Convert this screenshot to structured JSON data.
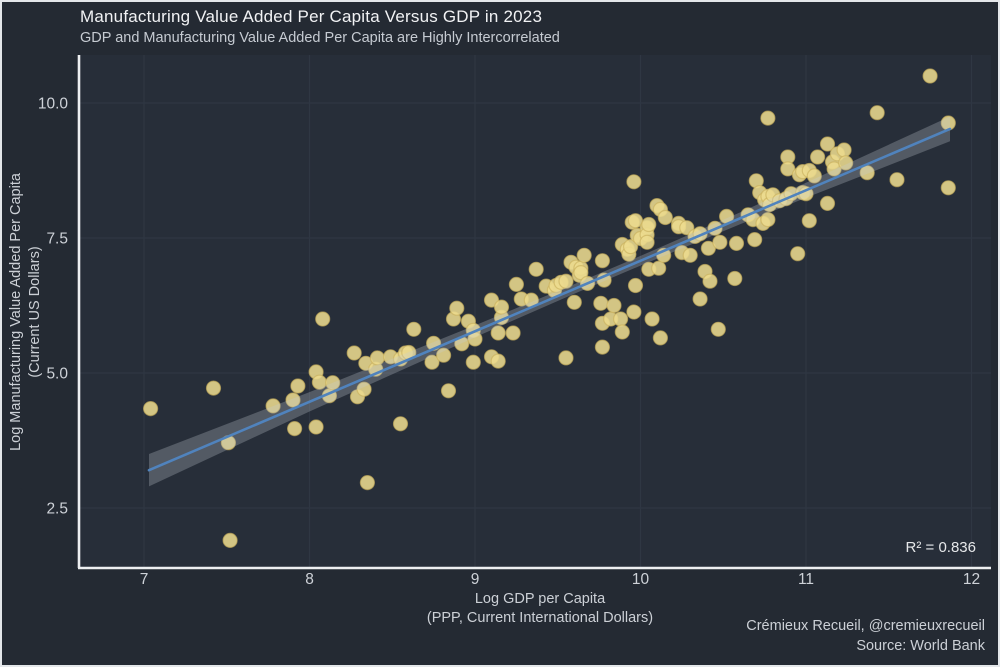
{
  "header": {
    "title": "Manufacturing Value Added Per Capita Versus GDP in 2023",
    "subtitle": "GDP and Manufacturing Value Added Per Capita are Highly Intercorrelated"
  },
  "footer": {
    "attribution": "Crémieux Recueil, @cremieuxrecueil",
    "source": "Source: World Bank"
  },
  "colors": {
    "background": "#242a33",
    "panel": "#272e39",
    "gridline": "#2f3743",
    "spine": "#edeff1",
    "point_fill": "#ecdb8e",
    "point_edge": "#c9b05e",
    "regression_line": "#5083bd",
    "confidence_band": "rgba(197,203,213,0.28)",
    "text": "#ced2d8",
    "title_text": "#f1f2f4"
  },
  "chart_data": {
    "type": "scatter",
    "title": "Manufacturing Value Added Per Capita Versus GDP in 2023",
    "subtitle": "GDP and Manufacturing Value Added Per Capita are Highly Intercorrelated",
    "xlabel_line1": "Log GDP per Capita",
    "xlabel_line2": "(PPP, Current International Dollars)",
    "ylabel_line1": "Log Manufacturing Value Added Per Capita",
    "ylabel_line2": "(Current US Dollars)",
    "annotation": "R² = 0.836",
    "xlim": [
      6.61,
      12.1
    ],
    "ylim": [
      1.42,
      10.9
    ],
    "xticks": [
      7,
      8,
      9,
      10,
      11,
      12
    ],
    "xtick_labels": [
      "7",
      "8",
      "9",
      "10",
      "11",
      "12"
    ],
    "yticks": [
      2.5,
      5.0,
      7.5,
      10.0
    ],
    "ytick_labels": [
      "2.5",
      "5.0",
      "7.5",
      "10.0"
    ],
    "grid": "major-on",
    "legend": "none",
    "regression": {
      "x1": 7.03,
      "y1": 3.2,
      "x2": 11.87,
      "y2": 9.52
    },
    "band_halfwidth": [
      [
        7.03,
        0.3
      ],
      [
        8.0,
        0.18
      ],
      [
        9.0,
        0.11
      ],
      [
        9.6,
        0.09
      ],
      [
        10.0,
        0.09
      ],
      [
        10.6,
        0.11
      ],
      [
        11.0,
        0.14
      ],
      [
        11.87,
        0.23
      ]
    ],
    "points": [
      [
        7.04,
        4.34
      ],
      [
        7.42,
        4.72
      ],
      [
        7.51,
        3.71
      ],
      [
        7.52,
        1.9
      ],
      [
        7.78,
        4.39
      ],
      [
        7.9,
        4.5
      ],
      [
        7.91,
        3.97
      ],
      [
        7.93,
        4.76
      ],
      [
        8.04,
        5.02
      ],
      [
        8.04,
        4.0
      ],
      [
        8.06,
        4.83
      ],
      [
        8.08,
        6.0
      ],
      [
        8.12,
        4.58
      ],
      [
        8.14,
        4.82
      ],
      [
        8.27,
        5.37
      ],
      [
        8.29,
        4.56
      ],
      [
        8.33,
        4.7
      ],
      [
        8.34,
        5.18
      ],
      [
        8.35,
        2.97
      ],
      [
        8.4,
        5.07
      ],
      [
        8.41,
        5.28
      ],
      [
        8.49,
        5.3
      ],
      [
        8.55,
        5.26
      ],
      [
        8.55,
        4.06
      ],
      [
        8.58,
        5.37
      ],
      [
        8.6,
        5.38
      ],
      [
        8.63,
        5.81
      ],
      [
        8.74,
        5.2
      ],
      [
        8.75,
        5.55
      ],
      [
        8.81,
        5.33
      ],
      [
        8.84,
        4.67
      ],
      [
        8.87,
        6.0
      ],
      [
        8.89,
        6.2
      ],
      [
        8.92,
        5.54
      ],
      [
        8.96,
        5.96
      ],
      [
        8.99,
        5.79
      ],
      [
        8.99,
        5.2
      ],
      [
        9.0,
        5.63
      ],
      [
        9.1,
        5.3
      ],
      [
        9.1,
        6.35
      ],
      [
        9.14,
        5.74
      ],
      [
        9.14,
        5.22
      ],
      [
        9.16,
        6.03
      ],
      [
        9.16,
        6.22
      ],
      [
        9.23,
        5.74
      ],
      [
        9.25,
        6.64
      ],
      [
        9.28,
        6.37
      ],
      [
        9.34,
        6.35
      ],
      [
        9.37,
        6.92
      ],
      [
        9.43,
        6.61
      ],
      [
        9.48,
        6.53
      ],
      [
        9.49,
        6.62
      ],
      [
        9.52,
        6.68
      ],
      [
        9.55,
        5.28
      ],
      [
        9.55,
        6.7
      ],
      [
        9.58,
        7.05
      ],
      [
        9.6,
        6.31
      ],
      [
        9.61,
        6.96
      ],
      [
        9.63,
        6.81
      ],
      [
        9.64,
        6.94
      ],
      [
        9.64,
        6.86
      ],
      [
        9.66,
        7.18
      ],
      [
        9.68,
        6.66
      ],
      [
        9.76,
        6.29
      ],
      [
        9.77,
        7.08
      ],
      [
        9.77,
        5.48
      ],
      [
        9.77,
        5.92
      ],
      [
        9.78,
        6.72
      ],
      [
        9.82,
        6.0
      ],
      [
        9.84,
        6.25
      ],
      [
        9.88,
        6.0
      ],
      [
        9.89,
        7.38
      ],
      [
        9.89,
        5.76
      ],
      [
        9.92,
        7.29
      ],
      [
        9.93,
        7.2
      ],
      [
        9.94,
        7.34
      ],
      [
        9.95,
        7.79
      ],
      [
        9.96,
        6.13
      ],
      [
        9.96,
        8.54
      ],
      [
        9.97,
        7.82
      ],
      [
        9.97,
        6.62
      ],
      [
        9.98,
        7.55
      ],
      [
        10.0,
        7.49
      ],
      [
        10.04,
        7.69
      ],
      [
        10.04,
        7.56
      ],
      [
        10.04,
        7.42
      ],
      [
        10.05,
        7.75
      ],
      [
        10.05,
        6.92
      ],
      [
        10.07,
        6.0
      ],
      [
        10.1,
        8.1
      ],
      [
        10.11,
        6.94
      ],
      [
        10.12,
        8.03
      ],
      [
        10.12,
        5.65
      ],
      [
        10.14,
        7.18
      ],
      [
        10.15,
        7.88
      ],
      [
        10.23,
        7.77
      ],
      [
        10.23,
        7.71
      ],
      [
        10.25,
        7.23
      ],
      [
        10.28,
        7.69
      ],
      [
        10.3,
        7.18
      ],
      [
        10.33,
        7.53
      ],
      [
        10.36,
        7.58
      ],
      [
        10.36,
        6.37
      ],
      [
        10.39,
        6.88
      ],
      [
        10.41,
        7.31
      ],
      [
        10.42,
        6.7
      ],
      [
        10.45,
        7.68
      ],
      [
        10.47,
        5.81
      ],
      [
        10.48,
        7.42
      ],
      [
        10.52,
        7.9
      ],
      [
        10.57,
        6.75
      ],
      [
        10.58,
        7.4
      ],
      [
        10.65,
        7.93
      ],
      [
        10.68,
        7.84
      ],
      [
        10.69,
        7.47
      ],
      [
        10.7,
        8.56
      ],
      [
        10.72,
        8.34
      ],
      [
        10.74,
        7.77
      ],
      [
        10.75,
        8.21
      ],
      [
        10.77,
        9.72
      ],
      [
        10.77,
        8.27
      ],
      [
        10.77,
        7.84
      ],
      [
        10.78,
        8.12
      ],
      [
        10.8,
        8.3
      ],
      [
        10.84,
        8.19
      ],
      [
        10.88,
        8.23
      ],
      [
        10.89,
        9.0
      ],
      [
        10.89,
        8.78
      ],
      [
        10.91,
        8.32
      ],
      [
        10.95,
        7.21
      ],
      [
        10.96,
        8.67
      ],
      [
        10.98,
        8.73
      ],
      [
        10.98,
        8.34
      ],
      [
        11.0,
        8.32
      ],
      [
        11.02,
        8.75
      ],
      [
        11.02,
        7.82
      ],
      [
        11.05,
        8.65
      ],
      [
        11.07,
        9.0
      ],
      [
        11.13,
        9.24
      ],
      [
        11.13,
        8.14
      ],
      [
        11.16,
        8.91
      ],
      [
        11.17,
        8.78
      ],
      [
        11.19,
        9.06
      ],
      [
        11.23,
        9.13
      ],
      [
        11.24,
        8.89
      ],
      [
        11.37,
        8.71
      ],
      [
        11.43,
        9.82
      ],
      [
        11.55,
        8.58
      ],
      [
        11.75,
        10.5
      ],
      [
        11.86,
        9.63
      ],
      [
        11.86,
        8.43
      ]
    ]
  }
}
